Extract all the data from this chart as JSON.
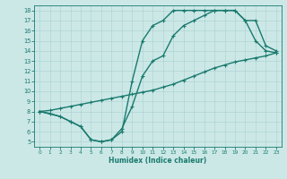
{
  "bg_color": "#cbe8e7",
  "line_color": "#1a7a6e",
  "line_width": 1.0,
  "marker": "+",
  "markersize": 3.5,
  "markerwidth": 0.8,
  "xlabel": "Humidex (Indice chaleur)",
  "xlim": [
    -0.5,
    23.5
  ],
  "ylim": [
    4.5,
    18.5
  ],
  "xticks": [
    0,
    1,
    2,
    3,
    4,
    5,
    6,
    7,
    8,
    9,
    10,
    11,
    12,
    13,
    14,
    15,
    16,
    17,
    18,
    19,
    20,
    21,
    22,
    23
  ],
  "yticks": [
    5,
    6,
    7,
    8,
    9,
    10,
    11,
    12,
    13,
    14,
    15,
    16,
    17,
    18
  ],
  "curve1_x": [
    0,
    1,
    2,
    3,
    4,
    5,
    6,
    7,
    8,
    9,
    10,
    11,
    12,
    13,
    14,
    15,
    16,
    17,
    18,
    19,
    20,
    21,
    22,
    23
  ],
  "curve1_y": [
    8.0,
    7.8,
    7.5,
    7.0,
    6.5,
    5.2,
    5.0,
    5.2,
    6.0,
    11.0,
    15.0,
    16.5,
    17.0,
    18.0,
    18.0,
    18.0,
    18.0,
    18.0,
    18.0,
    18.0,
    17.0,
    15.0,
    14.0,
    13.8
  ],
  "curve2_x": [
    0,
    2,
    3,
    4,
    5,
    6,
    7,
    8,
    9,
    10,
    11,
    12,
    13,
    14,
    15,
    16,
    17,
    18,
    19,
    20,
    21,
    22,
    23
  ],
  "curve2_y": [
    8.0,
    7.5,
    7.0,
    6.5,
    5.2,
    5.0,
    5.2,
    6.3,
    8.5,
    11.5,
    13.0,
    13.5,
    15.5,
    16.5,
    17.0,
    17.5,
    18.0,
    18.0,
    18.0,
    17.0,
    17.0,
    14.5,
    14.0
  ],
  "curve3_x": [
    0,
    1,
    2,
    3,
    4,
    5,
    6,
    7,
    8,
    9,
    10,
    11,
    12,
    13,
    14,
    15,
    16,
    17,
    18,
    19,
    20,
    21,
    22,
    23
  ],
  "curve3_y": [
    8.0,
    8.1,
    8.3,
    8.5,
    8.7,
    8.9,
    9.1,
    9.3,
    9.5,
    9.7,
    9.9,
    10.1,
    10.4,
    10.7,
    11.1,
    11.5,
    11.9,
    12.3,
    12.6,
    12.9,
    13.1,
    13.3,
    13.5,
    13.8
  ]
}
